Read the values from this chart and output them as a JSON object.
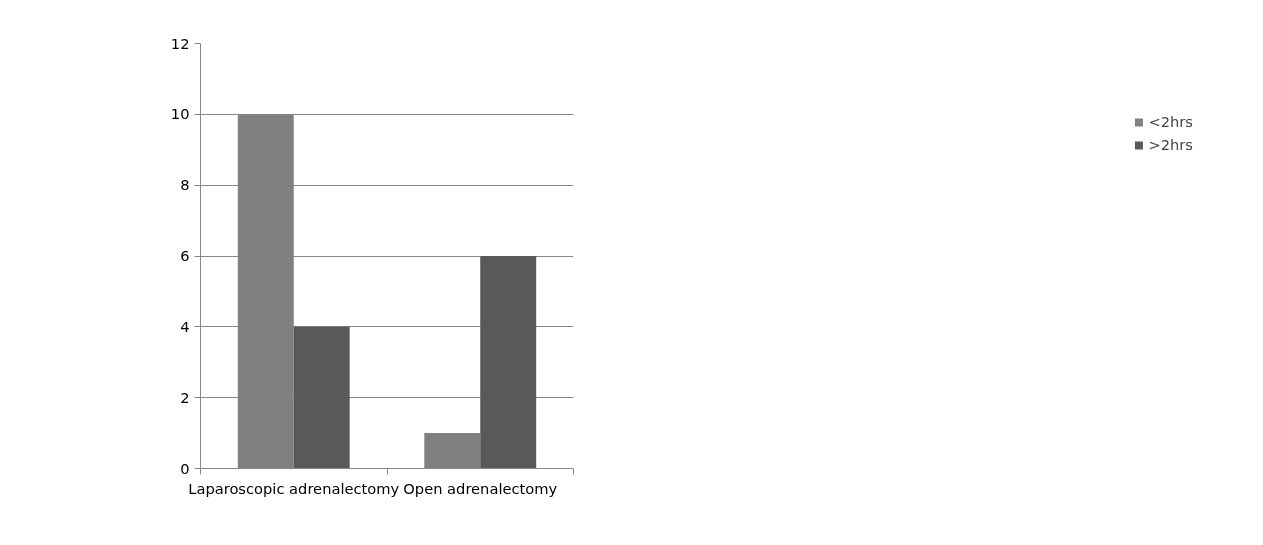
{
  "chart_data": {
    "type": "bar",
    "categories": [
      "Laparoscopic adrenalectomy",
      "Open adrenalectomy"
    ],
    "series": [
      {
        "name": "<2hrs",
        "color": "#808080",
        "values": [
          10,
          1
        ]
      },
      {
        "name": ">2hrs",
        "color": "#595959",
        "values": [
          4,
          6
        ]
      }
    ],
    "ylim": [
      0,
      12
    ],
    "yticks": [
      0,
      2,
      4,
      6,
      8,
      10,
      12
    ],
    "grid": "y",
    "legend": "right"
  }
}
